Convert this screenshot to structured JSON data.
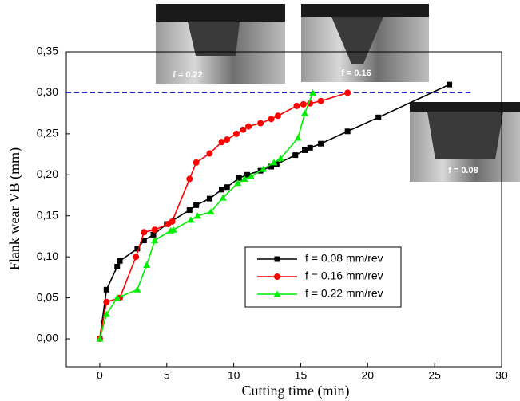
{
  "chart_data": {
    "type": "line",
    "xlabel": "Cutting time (min)",
    "ylabel": "Flank wear VB (mm)",
    "xlim": [
      -2.5,
      30
    ],
    "ylim": [
      -0.034,
      0.35
    ],
    "xticks": [
      0,
      5,
      10,
      15,
      20,
      25,
      30
    ],
    "yticks": [
      {
        "value": 0,
        "label": "0,00"
      },
      {
        "value": 0.05,
        "label": "0,05"
      },
      {
        "value": 0.1,
        "label": "0,10"
      },
      {
        "value": 0.15,
        "label": "0,15"
      },
      {
        "value": 0.2,
        "label": "0,20"
      },
      {
        "value": 0.25,
        "label": "0,25"
      },
      {
        "value": 0.3,
        "label": "0,30"
      },
      {
        "value": 0.35,
        "label": "0,35"
      }
    ],
    "reference_line": {
      "value": 0.3,
      "color": "#1f1fd0"
    },
    "photo_labels": [
      "f = 0.22",
      "f = 0.16",
      "f = 0.08"
    ],
    "series": [
      {
        "name": "f = 0.08 mm/rev",
        "color": "#000000",
        "marker": "square",
        "x": [
          0,
          0.5,
          1.3,
          1.5,
          2.8,
          3.3,
          4.0,
          5.0,
          6.7,
          7.2,
          8.2,
          9.1,
          9.5,
          10.4,
          11.0,
          12.0,
          12.8,
          13.2,
          14.6,
          15.3,
          15.7,
          16.5,
          18.5,
          20.8,
          26.1
        ],
        "values": [
          0,
          0.06,
          0.088,
          0.095,
          0.11,
          0.12,
          0.127,
          0.14,
          0.157,
          0.163,
          0.171,
          0.182,
          0.185,
          0.196,
          0.2,
          0.205,
          0.21,
          0.213,
          0.224,
          0.23,
          0.233,
          0.238,
          0.253,
          0.27,
          0.31
        ]
      },
      {
        "name": "f = 0.16 mm/rev",
        "color": "#ff0000",
        "marker": "circle",
        "x": [
          0,
          0.5,
          1.5,
          2.7,
          3.3,
          4.1,
          5.1,
          5.4,
          6.7,
          7.2,
          8.2,
          9.1,
          9.5,
          10.2,
          10.7,
          11.1,
          12.0,
          12.8,
          13.3,
          14.7,
          15.2,
          15.7,
          16.5,
          18.5
        ],
        "values": [
          0,
          0.045,
          0.05,
          0.1,
          0.13,
          0.133,
          0.14,
          0.143,
          0.195,
          0.215,
          0.226,
          0.24,
          0.243,
          0.25,
          0.255,
          0.259,
          0.263,
          0.268,
          0.272,
          0.284,
          0.286,
          0.287,
          0.29,
          0.3
        ]
      },
      {
        "name": "f = 0.22 mm/rev",
        "color": "#00ee00",
        "marker": "triangle",
        "x": [
          0,
          0.5,
          1.3,
          2.8,
          3.5,
          4.1,
          5.3,
          5.5,
          6.8,
          7.3,
          8.3,
          9.2,
          10.3,
          10.8,
          11.3,
          12.2,
          13.0,
          13.5,
          14.8,
          15.3,
          15.9
        ],
        "values": [
          0,
          0.03,
          0.05,
          0.06,
          0.09,
          0.12,
          0.132,
          0.133,
          0.145,
          0.15,
          0.155,
          0.172,
          0.19,
          0.195,
          0.198,
          0.207,
          0.215,
          0.22,
          0.245,
          0.275,
          0.3
        ]
      }
    ]
  }
}
